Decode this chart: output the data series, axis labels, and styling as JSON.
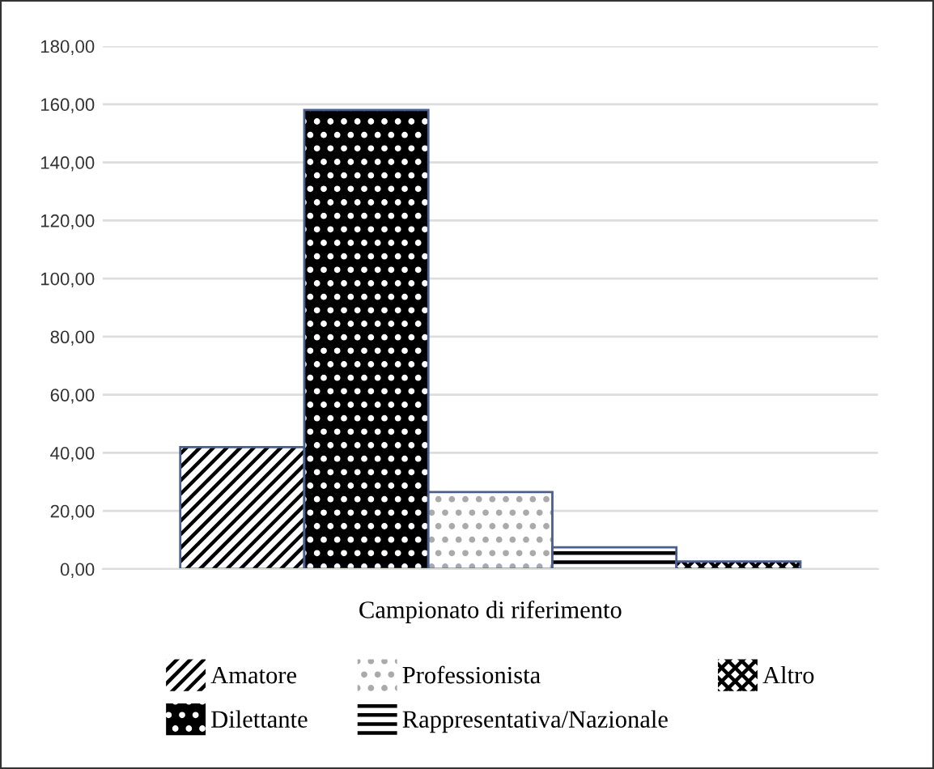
{
  "chart_data": {
    "type": "bar",
    "xlabel": "Campionato di riferimento",
    "categories": [
      null
    ],
    "series": [
      {
        "name": "Amatore",
        "color": "#ffffff",
        "values": [
          42
        ]
      },
      {
        "name": "Dilettante",
        "color": "#000000",
        "values": [
          158
        ]
      },
      {
        "name": "Professionista",
        "color": "#ffffff",
        "values": [
          26.5
        ]
      },
      {
        "name": "Rappresentativa/Nazionale",
        "color": "#ffffff",
        "values": [
          7.5
        ]
      },
      {
        "name": "Altro",
        "color": "#ffffff",
        "values": [
          2.6
        ]
      }
    ],
    "ylim": [
      0,
      180
    ],
    "yticks": [
      {
        "value": 0,
        "label": "0,00"
      },
      {
        "value": 20,
        "label": "20,00"
      },
      {
        "value": 40,
        "label": "40,00"
      },
      {
        "value": 60,
        "label": "60,00"
      },
      {
        "value": 80,
        "label": "80,00"
      },
      {
        "value": 100,
        "label": "100,00"
      },
      {
        "value": 120,
        "label": "120,00"
      },
      {
        "value": 140,
        "label": "140,00"
      },
      {
        "value": 160,
        "label": "160,00"
      },
      {
        "value": 180,
        "label": "180,00"
      }
    ],
    "grid": "y",
    "legend": "bottom",
    "tick_labels": "y"
  }
}
